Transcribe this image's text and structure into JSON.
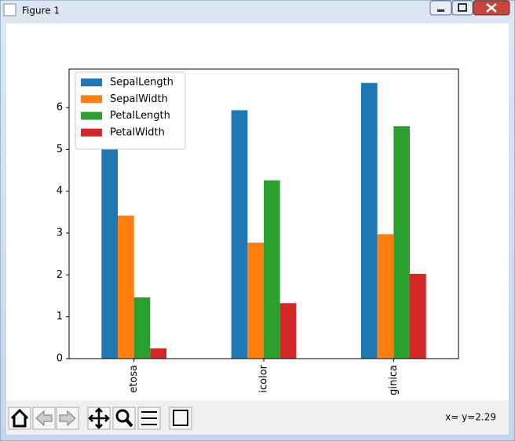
{
  "window": {
    "title": "Figure 1"
  },
  "chart_data": {
    "type": "bar",
    "categories": [
      "etosa",
      "icolor",
      "ginica"
    ],
    "series": [
      {
        "name": "SepalLength",
        "color": "#1f77b4",
        "values": [
          5.006,
          5.936,
          6.588
        ]
      },
      {
        "name": "SepalWidth",
        "color": "#ff7f0e",
        "values": [
          3.418,
          2.77,
          2.974
        ]
      },
      {
        "name": "PetalLength",
        "color": "#2ca02c",
        "values": [
          1.464,
          4.26,
          5.552
        ]
      },
      {
        "name": "PetalWidth",
        "color": "#d62728",
        "values": [
          0.244,
          1.326,
          2.026
        ]
      }
    ],
    "ylim": [
      0,
      6.92
    ],
    "yticks": [
      0,
      1,
      2,
      3,
      4,
      5,
      6
    ],
    "legend": "upper left"
  },
  "toolbar": {
    "status": "x= y=2.29"
  }
}
